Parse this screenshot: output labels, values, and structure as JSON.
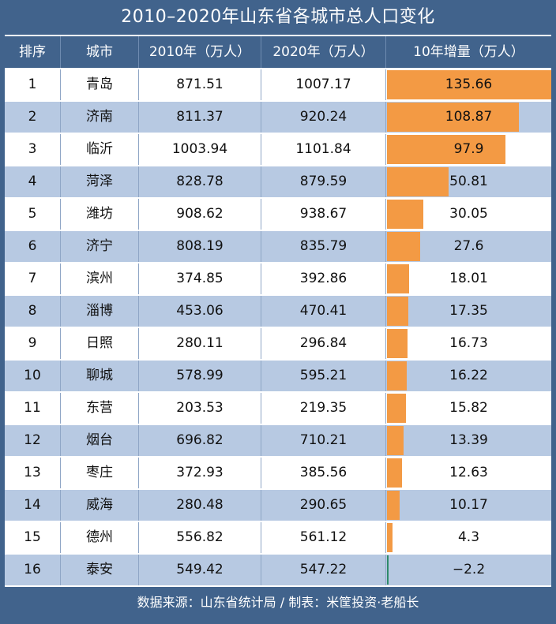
{
  "chart_data": {
    "type": "table",
    "title": "2010–2020年山东省各城市总人口变化",
    "columns": [
      "排序",
      "城市",
      "2010年（万人）",
      "2020年（万人）",
      "10年增量（万人）"
    ],
    "rows": [
      {
        "rank": "1",
        "city": "青岛",
        "pop2010": "871.51",
        "pop2020": "1007.17",
        "increase": 135.66
      },
      {
        "rank": "2",
        "city": "济南",
        "pop2010": "811.37",
        "pop2020": "920.24",
        "increase": 108.87
      },
      {
        "rank": "3",
        "city": "临沂",
        "pop2010": "1003.94",
        "pop2020": "1101.84",
        "increase": 97.9
      },
      {
        "rank": "4",
        "city": "菏泽",
        "pop2010": "828.78",
        "pop2020": "879.59",
        "increase": 50.81
      },
      {
        "rank": "5",
        "city": "潍坊",
        "pop2010": "908.62",
        "pop2020": "938.67",
        "increase": 30.05
      },
      {
        "rank": "6",
        "city": "济宁",
        "pop2010": "808.19",
        "pop2020": "835.79",
        "increase": 27.6
      },
      {
        "rank": "7",
        "city": "滨州",
        "pop2010": "374.85",
        "pop2020": "392.86",
        "increase": 18.01
      },
      {
        "rank": "8",
        "city": "淄博",
        "pop2010": "453.06",
        "pop2020": "470.41",
        "increase": 17.35
      },
      {
        "rank": "9",
        "city": "日照",
        "pop2010": "280.11",
        "pop2020": "296.84",
        "increase": 16.73
      },
      {
        "rank": "10",
        "city": "聊城",
        "pop2010": "578.99",
        "pop2020": "595.21",
        "increase": 16.22
      },
      {
        "rank": "11",
        "city": "东营",
        "pop2010": "203.53",
        "pop2020": "219.35",
        "increase": 15.82
      },
      {
        "rank": "12",
        "city": "烟台",
        "pop2010": "696.82",
        "pop2020": "710.21",
        "increase": 13.39
      },
      {
        "rank": "13",
        "city": "枣庄",
        "pop2010": "372.93",
        "pop2020": "385.56",
        "increase": 12.63
      },
      {
        "rank": "14",
        "city": "威海",
        "pop2010": "280.48",
        "pop2020": "290.65",
        "increase": 10.17
      },
      {
        "rank": "15",
        "city": "德州",
        "pop2010": "556.82",
        "pop2020": "561.12",
        "increase": 4.3
      },
      {
        "rank": "16",
        "city": "泰安",
        "pop2010": "549.42",
        "pop2020": "547.22",
        "increase": -2.2
      }
    ],
    "increase_labels": [
      "135.66",
      "108.87",
      "97.9",
      "50.81",
      "30.05",
      "27.6",
      "18.01",
      "17.35",
      "16.73",
      "16.22",
      "15.82",
      "13.39",
      "12.63",
      "10.17",
      "4.3",
      "−2.2"
    ],
    "bar_type": "bar",
    "colors": {
      "header": "#41638c",
      "row_alt": "#b7c9e2",
      "bar_positive": "#f39a44",
      "bar_negative": "#2e8a6a"
    }
  },
  "footer": "数据来源：山东省统计局 / 制表：米筐投资·老船长"
}
